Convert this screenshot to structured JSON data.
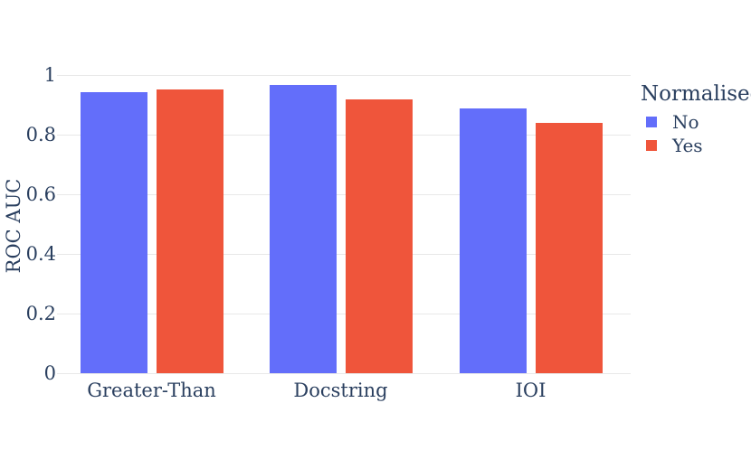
{
  "colors": {
    "series_no": "#636EFA",
    "series_yes": "#EF553B",
    "text": "#2A3F5F",
    "gridline": "#E8E8E8",
    "background": "#FFFFFF"
  },
  "chart_data": {
    "type": "bar",
    "title": "",
    "categories": [
      "Greater-Than",
      "Docstring",
      "IOI"
    ],
    "series": [
      {
        "name": "No",
        "color": "#636EFA",
        "values": [
          0.94,
          0.965,
          0.887
        ]
      },
      {
        "name": "Yes",
        "color": "#EF553B",
        "values": [
          0.95,
          0.917,
          0.838
        ]
      }
    ],
    "xlabel": "",
    "ylabel": "ROC AUC",
    "ylim": [
      0,
      1.0
    ],
    "yticks": [
      0,
      0.2,
      0.4,
      0.6,
      0.8,
      1
    ],
    "ytick_labels": [
      "0",
      "0.2",
      "0.4",
      "0.6",
      "0.8",
      "1"
    ],
    "grid": true,
    "legend_title": "Normalised",
    "legend_position": "right",
    "legend_entries": [
      "No",
      "Yes"
    ]
  }
}
